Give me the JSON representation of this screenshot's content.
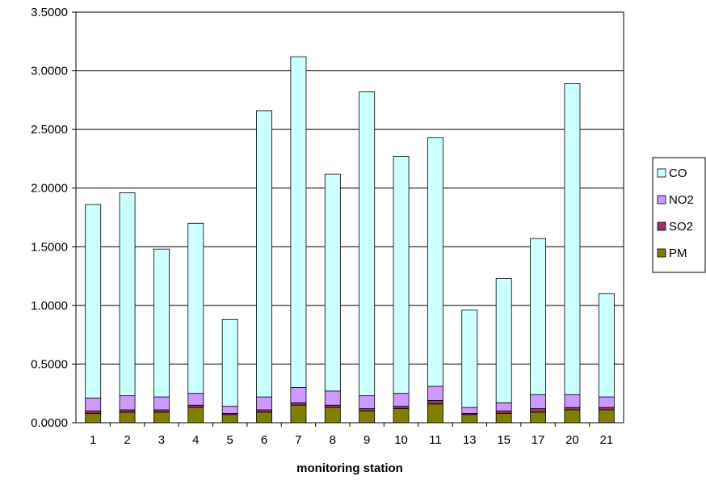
{
  "chart_data": {
    "type": "bar",
    "stacked": true,
    "title": "",
    "xlabel": "monitoring station",
    "ylabel": "",
    "ylim": [
      0,
      3.5
    ],
    "yticks": [
      "0.0000",
      "0.5000",
      "1.0000",
      "1.5000",
      "2.0000",
      "2.5000",
      "3.0000",
      "3.5000"
    ],
    "grid": true,
    "legend_position": "right",
    "categories": [
      "1",
      "2",
      "3",
      "4",
      "5",
      "6",
      "7",
      "8",
      "9",
      "10",
      "11",
      "13",
      "15",
      "17",
      "20",
      "21"
    ],
    "series": [
      {
        "name": "PM",
        "color": "#808000",
        "values": [
          0.08,
          0.09,
          0.09,
          0.13,
          0.07,
          0.09,
          0.15,
          0.13,
          0.1,
          0.12,
          0.16,
          0.07,
          0.08,
          0.09,
          0.11,
          0.11
        ]
      },
      {
        "name": "SO2",
        "color": "#993366",
        "values": [
          0.02,
          0.02,
          0.02,
          0.02,
          0.01,
          0.02,
          0.02,
          0.02,
          0.02,
          0.02,
          0.03,
          0.01,
          0.02,
          0.03,
          0.02,
          0.02
        ]
      },
      {
        "name": "NO2",
        "color": "#CC99FF",
        "values": [
          0.11,
          0.12,
          0.11,
          0.1,
          0.06,
          0.11,
          0.13,
          0.12,
          0.11,
          0.11,
          0.12,
          0.05,
          0.07,
          0.12,
          0.11,
          0.09
        ]
      },
      {
        "name": "CO",
        "color": "#CCFFFF",
        "values": [
          1.65,
          1.73,
          1.26,
          1.45,
          0.74,
          2.44,
          2.82,
          1.85,
          2.59,
          2.02,
          2.12,
          0.83,
          1.06,
          1.33,
          2.65,
          0.88
        ]
      }
    ],
    "legend_order": [
      "CO",
      "NO2",
      "SO2",
      "PM"
    ]
  }
}
